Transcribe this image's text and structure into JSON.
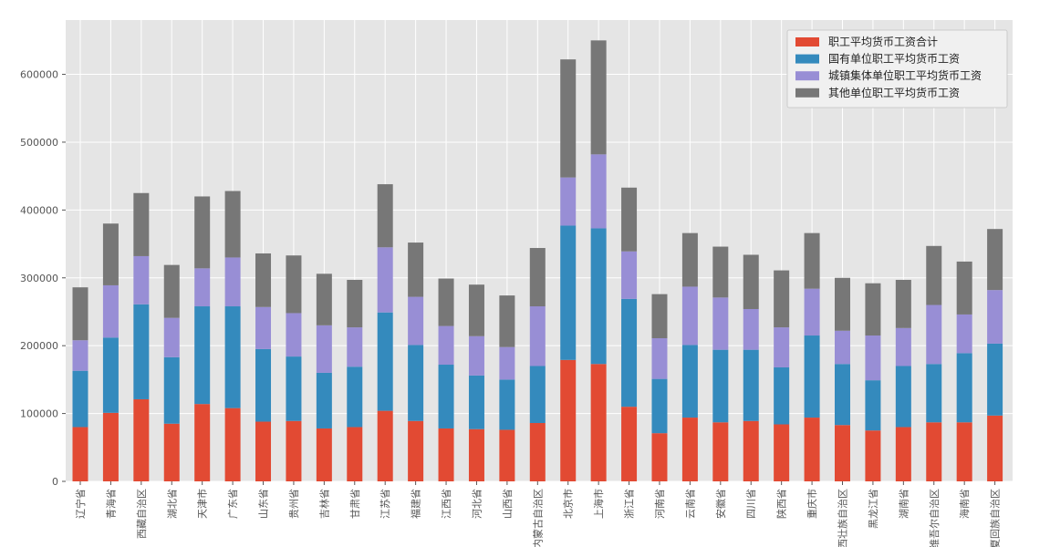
{
  "chart_data": {
    "type": "bar",
    "stacked": true,
    "grid": true,
    "legend_position": "top-right",
    "ylim": [
      0,
      680000
    ],
    "yticks": [
      0,
      100000,
      200000,
      300000,
      400000,
      500000,
      600000
    ],
    "categories": [
      "辽宁省",
      "青海省",
      "西藏自治区",
      "湖北省",
      "天津市",
      "广东省",
      "山东省",
      "贵州省",
      "吉林省",
      "甘肃省",
      "江苏省",
      "福建省",
      "江西省",
      "河北省",
      "山西省",
      "内蒙古自治区",
      "北京市",
      "上海市",
      "浙江省",
      "河南省",
      "云南省",
      "安徽省",
      "四川省",
      "陕西省",
      "重庆市",
      "广西壮族自治区",
      "黑龙江省",
      "湖南省",
      "新疆维吾尔自治区",
      "海南省",
      "宁夏回族自治区"
    ],
    "series": [
      {
        "name": "职工平均货币工资合计",
        "color": "#E24A33",
        "values": [
          80000,
          101000,
          121000,
          85000,
          114000,
          108000,
          88000,
          89000,
          78000,
          80000,
          104000,
          89000,
          78000,
          77000,
          76000,
          86000,
          179000,
          173000,
          110000,
          71000,
          94000,
          87000,
          89000,
          84000,
          94000,
          83000,
          75000,
          80000,
          87000,
          87000,
          97000
        ]
      },
      {
        "name": "国有单位职工平均货币工资",
        "color": "#348ABD",
        "values": [
          83000,
          111000,
          140000,
          98000,
          144000,
          150000,
          107000,
          95000,
          82000,
          89000,
          145000,
          112000,
          94000,
          79000,
          74000,
          84000,
          198000,
          200000,
          159000,
          80000,
          107000,
          107000,
          105000,
          84000,
          121000,
          90000,
          74000,
          90000,
          86000,
          102000,
          106000
        ]
      },
      {
        "name": "城镇集体单位职工平均货币工资",
        "color": "#988ED5",
        "values": [
          45000,
          77000,
          71000,
          58000,
          56000,
          72000,
          62000,
          64000,
          70000,
          58000,
          96000,
          71000,
          57000,
          58000,
          48000,
          88000,
          71000,
          109000,
          70000,
          60000,
          86000,
          77000,
          60000,
          59000,
          69000,
          49000,
          66000,
          56000,
          87000,
          57000,
          79000
        ]
      },
      {
        "name": "其他单位职工平均货币工资",
        "color": "#777777",
        "values": [
          78000,
          91000,
          93000,
          78000,
          106000,
          98000,
          79000,
          85000,
          76000,
          70000,
          93000,
          80000,
          70000,
          76000,
          76000,
          86000,
          174000,
          168000,
          94000,
          65000,
          79000,
          75000,
          80000,
          84000,
          82000,
          78000,
          77000,
          71000,
          87000,
          78000,
          90000
        ]
      }
    ]
  }
}
